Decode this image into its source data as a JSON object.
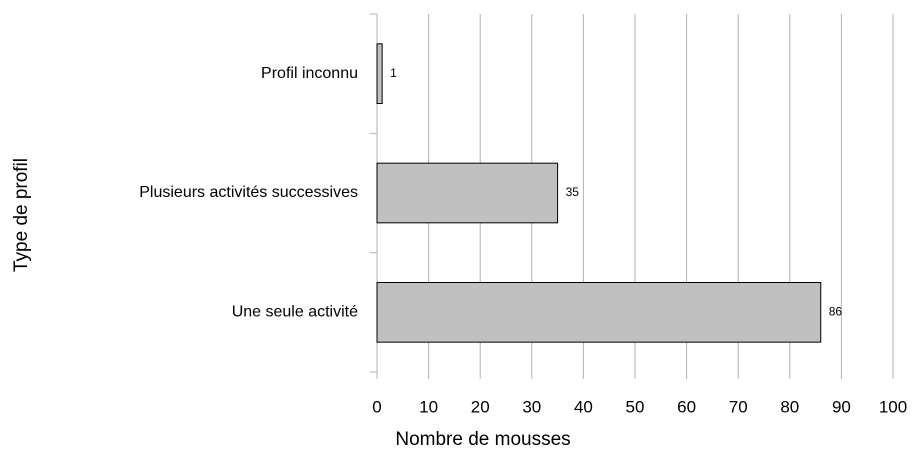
{
  "chart_data": {
    "type": "barh",
    "categories": [
      "Profil inconnu",
      "Plusieurs activités successives",
      "Une seule activité"
    ],
    "values": [
      1,
      35,
      86
    ],
    "color": "#c0c0c0",
    "xlabel": "Nombre de mousses",
    "ylabel": "Type de profil",
    "xlim": [
      0,
      100
    ],
    "xticks": [
      0,
      10,
      20,
      30,
      40,
      50,
      60,
      70,
      80,
      90,
      100
    ],
    "grid": true
  }
}
